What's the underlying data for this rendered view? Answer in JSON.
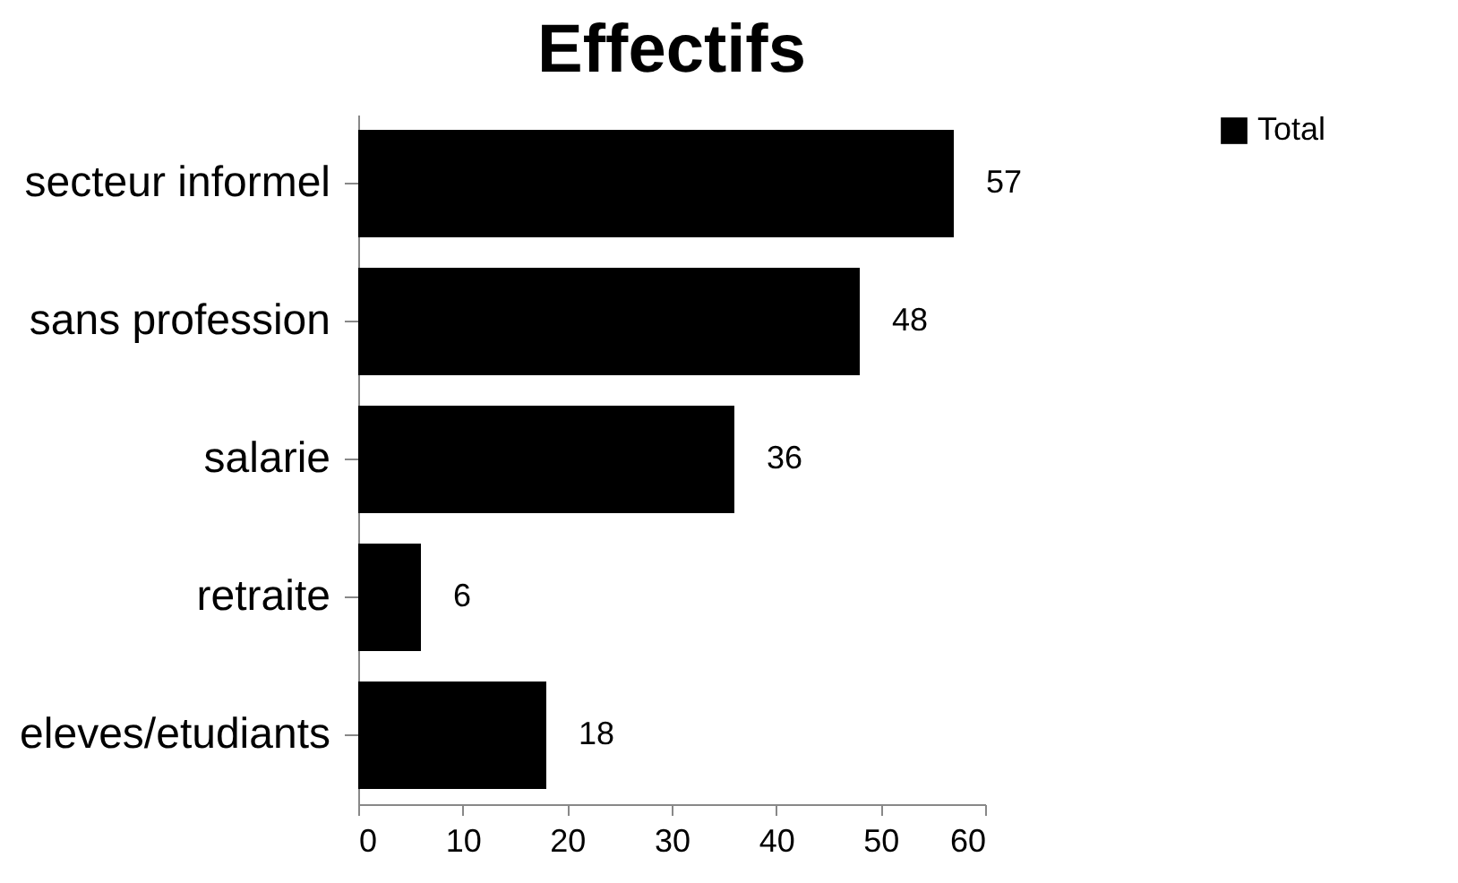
{
  "chart_data": {
    "type": "bar",
    "title": "Effectifs",
    "orientation": "horizontal",
    "categories": [
      "secteur informel",
      "sans profession",
      "salarie",
      "retraite",
      "eleves/etudiants"
    ],
    "series": [
      {
        "name": "Total",
        "color": "#000000",
        "values": [
          57,
          48,
          36,
          6,
          18
        ]
      }
    ],
    "xlim": [
      0,
      60
    ],
    "xticks": [
      0,
      10,
      20,
      30,
      40,
      50,
      60
    ],
    "grid": false,
    "legend": "right",
    "data_labels": true
  }
}
